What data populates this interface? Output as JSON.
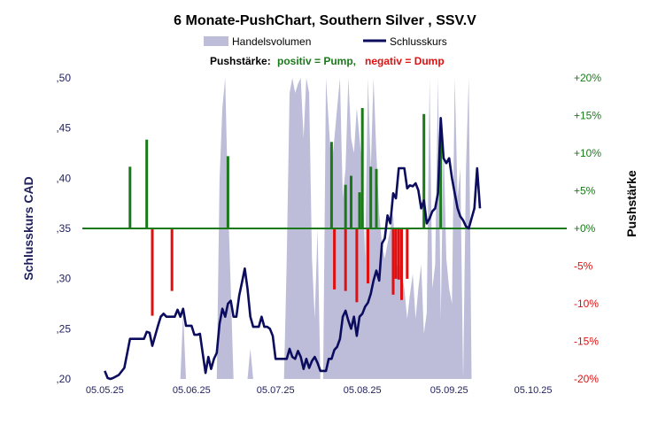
{
  "chart_data": {
    "type": "line",
    "title": "6 Monate-PushChart,  Southern Silver , SSV.V",
    "legend": {
      "volume": "Handelsvolumen",
      "close": "Schlusskurs"
    },
    "push_legend": {
      "label": "Pushstärke:",
      "positive": "positiv = Pump,",
      "negative": "negativ = Dump"
    },
    "ylabel_left": "Schlusskurs CAD",
    "ylabel_right": "Pushstärke",
    "ylim_left": [
      0.2,
      0.5
    ],
    "yticks_left": [
      ",20",
      ",25",
      ",30",
      ",35",
      ",40",
      ",45",
      ",50"
    ],
    "ylim_right": [
      -20,
      20
    ],
    "yticks_right": [
      "-20%",
      "-15%",
      "-10%",
      "-5%",
      "+0%",
      "+5%",
      "+10%",
      "+15%",
      "+20%"
    ],
    "xlim_days": [
      -8,
      165
    ],
    "x_ticks": [
      {
        "day": 0,
        "label": "05.05.25"
      },
      {
        "day": 31,
        "label": "05.06.25"
      },
      {
        "day": 61,
        "label": "05.07.25"
      },
      {
        "day": 92,
        "label": "05.08.25"
      },
      {
        "day": 123,
        "label": "05.09.25"
      },
      {
        "day": 153,
        "label": "05.10.25"
      }
    ],
    "colors": {
      "close": "#0c0c5e",
      "volume": "#bdbdd9",
      "pump": "#1a7a1a",
      "dump": "#e01010",
      "zero": "#1a7a1a"
    },
    "close_series": [
      [
        0,
        0.208
      ],
      [
        1,
        0.201
      ],
      [
        2,
        0.2
      ],
      [
        3,
        0.201
      ],
      [
        5,
        0.204
      ],
      [
        7,
        0.211
      ],
      [
        9,
        0.24
      ],
      [
        11,
        0.24
      ],
      [
        13,
        0.24
      ],
      [
        14,
        0.24
      ],
      [
        15,
        0.247
      ],
      [
        16,
        0.246
      ],
      [
        17,
        0.233
      ],
      [
        19,
        0.253
      ],
      [
        20,
        0.262
      ],
      [
        21,
        0.265
      ],
      [
        22,
        0.262
      ],
      [
        24,
        0.262
      ],
      [
        25,
        0.262
      ],
      [
        26,
        0.269
      ],
      [
        27,
        0.262
      ],
      [
        28,
        0.27
      ],
      [
        29,
        0.253
      ],
      [
        30,
        0.253
      ],
      [
        31,
        0.253
      ],
      [
        32,
        0.244
      ],
      [
        33,
        0.244
      ],
      [
        34,
        0.245
      ],
      [
        35,
        0.225
      ],
      [
        36,
        0.206
      ],
      [
        37,
        0.222
      ],
      [
        38,
        0.21
      ],
      [
        39,
        0.22
      ],
      [
        40,
        0.226
      ],
      [
        41,
        0.255
      ],
      [
        42,
        0.27
      ],
      [
        43,
        0.262
      ],
      [
        44,
        0.275
      ],
      [
        45,
        0.278
      ],
      [
        46,
        0.262
      ],
      [
        47,
        0.262
      ],
      [
        48,
        0.283
      ],
      [
        49,
        0.296
      ],
      [
        50,
        0.31
      ],
      [
        51,
        0.29
      ],
      [
        52,
        0.262
      ],
      [
        53,
        0.252
      ],
      [
        54,
        0.252
      ],
      [
        55,
        0.252
      ],
      [
        56,
        0.262
      ],
      [
        57,
        0.252
      ],
      [
        58,
        0.252
      ],
      [
        59,
        0.25
      ],
      [
        60,
        0.243
      ],
      [
        61,
        0.22
      ],
      [
        62,
        0.22
      ],
      [
        63,
        0.22
      ],
      [
        64,
        0.22
      ],
      [
        65,
        0.22
      ],
      [
        66,
        0.23
      ],
      [
        67,
        0.222
      ],
      [
        68,
        0.22
      ],
      [
        69,
        0.228
      ],
      [
        70,
        0.222
      ],
      [
        71,
        0.21
      ],
      [
        72,
        0.22
      ],
      [
        73,
        0.211
      ],
      [
        74,
        0.218
      ],
      [
        75,
        0.222
      ],
      [
        76,
        0.216
      ],
      [
        77,
        0.208
      ],
      [
        78,
        0.208
      ],
      [
        79,
        0.208
      ],
      [
        80,
        0.22
      ],
      [
        81,
        0.22
      ],
      [
        82,
        0.229
      ],
      [
        83,
        0.232
      ],
      [
        84,
        0.24
      ],
      [
        85,
        0.262
      ],
      [
        86,
        0.268
      ],
      [
        87,
        0.258
      ],
      [
        88,
        0.25
      ],
      [
        89,
        0.262
      ],
      [
        90,
        0.243
      ],
      [
        91,
        0.262
      ],
      [
        92,
        0.265
      ],
      [
        93,
        0.272
      ],
      [
        94,
        0.276
      ],
      [
        95,
        0.285
      ],
      [
        96,
        0.298
      ],
      [
        97,
        0.308
      ],
      [
        98,
        0.298
      ],
      [
        99,
        0.335
      ],
      [
        100,
        0.34
      ],
      [
        101,
        0.363
      ],
      [
        102,
        0.355
      ],
      [
        103,
        0.385
      ],
      [
        104,
        0.38
      ],
      [
        105,
        0.41
      ],
      [
        106,
        0.41
      ],
      [
        107,
        0.41
      ],
      [
        108,
        0.39
      ],
      [
        109,
        0.393
      ],
      [
        110,
        0.392
      ],
      [
        111,
        0.395
      ],
      [
        112,
        0.388
      ],
      [
        113,
        0.37
      ],
      [
        114,
        0.378
      ],
      [
        115,
        0.355
      ],
      [
        116,
        0.36
      ],
      [
        117,
        0.367
      ],
      [
        118,
        0.37
      ],
      [
        119,
        0.385
      ],
      [
        120,
        0.46
      ],
      [
        121,
        0.42
      ],
      [
        122,
        0.415
      ],
      [
        123,
        0.42
      ],
      [
        124,
        0.4
      ],
      [
        125,
        0.385
      ],
      [
        126,
        0.37
      ],
      [
        127,
        0.362
      ],
      [
        128,
        0.358
      ],
      [
        129,
        0.352
      ],
      [
        130,
        0.35
      ],
      [
        131,
        0.36
      ],
      [
        132,
        0.37
      ],
      [
        133,
        0.41
      ],
      [
        134,
        0.37
      ]
    ],
    "volume_series": [
      [
        27,
        0.0
      ],
      [
        28,
        0.22
      ],
      [
        29,
        0.0
      ],
      [
        40,
        0.0
      ],
      [
        41,
        0.66
      ],
      [
        42,
        0.9
      ],
      [
        43,
        1.0
      ],
      [
        44,
        0.6
      ],
      [
        45,
        0.3
      ],
      [
        46,
        0.0
      ],
      [
        51,
        0.0
      ],
      [
        52,
        0.1
      ],
      [
        53,
        0.0
      ],
      [
        64,
        0.0
      ],
      [
        65,
        0.4
      ],
      [
        66,
        0.95
      ],
      [
        67,
        1.0
      ],
      [
        68,
        0.95
      ],
      [
        69,
        0.98
      ],
      [
        70,
        1.0
      ],
      [
        71,
        0.8
      ],
      [
        72,
        1.0
      ],
      [
        73,
        0.95
      ],
      [
        74,
        0.4
      ],
      [
        75,
        0.2
      ],
      [
        76,
        0.5
      ],
      [
        77,
        0.0
      ],
      [
        78,
        0.0
      ],
      [
        79,
        1.0
      ],
      [
        80,
        0.85
      ],
      [
        81,
        0.7
      ],
      [
        82,
        0.8
      ],
      [
        83,
        0.9
      ],
      [
        84,
        1.0
      ],
      [
        85,
        0.6
      ],
      [
        86,
        0.7
      ],
      [
        87,
        1.0
      ],
      [
        88,
        0.8
      ],
      [
        89,
        0.75
      ],
      [
        90,
        0.9
      ],
      [
        91,
        0.8
      ],
      [
        92,
        0.7
      ],
      [
        93,
        0.4
      ],
      [
        94,
        1.0
      ],
      [
        95,
        0.7
      ],
      [
        96,
        1.0
      ],
      [
        97,
        0.75
      ],
      [
        98,
        0.55
      ],
      [
        99,
        0.45
      ],
      [
        100,
        0.4
      ],
      [
        101,
        0.45
      ],
      [
        102,
        0.5
      ],
      [
        103,
        0.55
      ],
      [
        104,
        0.35
      ],
      [
        105,
        0.4
      ],
      [
        106,
        0.35
      ],
      [
        107,
        0.3
      ],
      [
        108,
        0.2
      ],
      [
        109,
        0.28
      ],
      [
        110,
        0.35
      ],
      [
        111,
        0.2
      ],
      [
        112,
        0.3
      ],
      [
        113,
        0.38
      ],
      [
        114,
        0.15
      ],
      [
        115,
        0.22
      ],
      [
        116,
        1.0
      ],
      [
        117,
        0.3
      ],
      [
        118,
        0.38
      ],
      [
        119,
        1.0
      ],
      [
        120,
        0.2
      ],
      [
        121,
        0.8
      ],
      [
        122,
        0.4
      ],
      [
        123,
        0.3
      ],
      [
        124,
        0.25
      ],
      [
        125,
        1.0
      ],
      [
        126,
        0.6
      ],
      [
        127,
        0.7
      ],
      [
        128,
        0.0
      ],
      [
        129,
        0.7
      ],
      [
        130,
        1.0
      ],
      [
        131,
        0.0
      ]
    ],
    "push_series": [
      [
        9,
        8.2
      ],
      [
        15,
        11.8
      ],
      [
        44,
        9.6
      ],
      [
        81,
        11.5
      ],
      [
        86,
        5.8
      ],
      [
        88,
        7.0
      ],
      [
        91,
        4.8
      ],
      [
        92,
        16.0
      ],
      [
        95,
        8.2
      ],
      [
        97,
        7.9
      ],
      [
        114,
        15.2
      ],
      [
        120,
        12.4
      ],
      [
        17,
        -11.6
      ],
      [
        24,
        -8.3
      ],
      [
        82,
        -8.1
      ],
      [
        86,
        -8.3
      ],
      [
        90,
        -9.8
      ],
      [
        94,
        -7.3
      ],
      [
        103,
        -8.8
      ],
      [
        104,
        -6.7
      ],
      [
        105,
        -6.8
      ],
      [
        106,
        -9.5
      ],
      [
        108,
        -6.7
      ]
    ]
  }
}
